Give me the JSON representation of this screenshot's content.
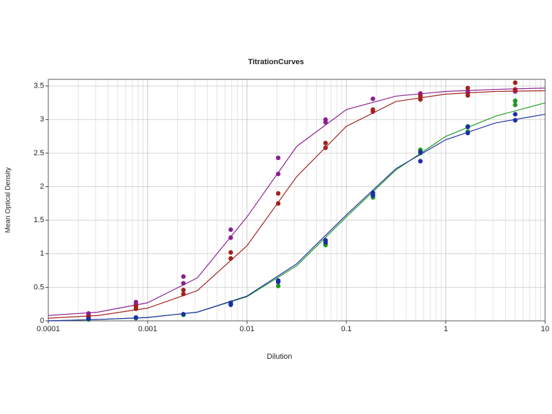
{
  "chart_data": {
    "type": "scatter",
    "title": "TitrationCurves",
    "x_label": "Dilution",
    "y_label": "Mean Optical Density",
    "xscale": "log",
    "grid": true,
    "xlim": [
      0.0001,
      10
    ],
    "xticks": [
      0.0001,
      0.001,
      0.01,
      0.1,
      1,
      10
    ],
    "xminorticks": [
      0.0002,
      0.0003,
      0.0004,
      0.0005,
      0.0006,
      0.0007,
      0.0008,
      0.0009,
      0.002,
      0.003,
      0.004,
      0.005,
      0.006,
      0.007,
      0.008,
      0.009,
      0.02,
      0.03,
      0.04,
      0.05,
      0.06,
      0.07,
      0.08,
      0.09,
      0.2,
      0.3,
      0.4,
      0.5,
      0.6,
      0.7,
      0.8,
      0.9,
      2,
      3,
      4,
      5,
      6,
      7,
      8,
      9
    ],
    "ylim": [
      0,
      3.6
    ],
    "yticks": [
      0,
      0.5,
      1,
      1.5,
      2,
      2.5,
      3,
      3.5
    ],
    "series": [
      {
        "color": "#8b1f8f",
        "x": [
          0.000254,
          0.000254,
          0.000762,
          0.000762,
          0.00229,
          0.00229,
          0.00686,
          0.00686,
          0.0206,
          0.0206,
          0.0617,
          0.0617,
          0.185,
          0.556,
          0.556,
          1.667,
          1.667,
          5,
          5
        ],
        "values": [
          0.11,
          0.08,
          0.28,
          0.24,
          0.66,
          0.56,
          1.36,
          1.24,
          2.43,
          2.19,
          3.0,
          2.96,
          3.31,
          3.39,
          3.36,
          3.42,
          3.4,
          3.44,
          3.42
        ],
        "fit": {
          "x": [
            0.0001,
            0.000316,
            0.001,
            0.00316,
            0.01,
            0.0316,
            0.1,
            0.316,
            1,
            3.16,
            10
          ],
          "values": [
            0.08,
            0.13,
            0.27,
            0.64,
            1.55,
            2.6,
            3.15,
            3.35,
            3.42,
            3.45,
            3.47
          ]
        }
      },
      {
        "color": "#a3201d",
        "x": [
          0.000254,
          0.000254,
          0.000762,
          0.000762,
          0.00229,
          0.00229,
          0.00686,
          0.00686,
          0.0206,
          0.0206,
          0.0617,
          0.0617,
          0.185,
          0.185,
          0.556,
          0.556,
          1.667,
          1.667,
          5,
          5
        ],
        "values": [
          0.06,
          0.04,
          0.22,
          0.18,
          0.46,
          0.4,
          1.02,
          0.93,
          1.9,
          1.75,
          2.65,
          2.58,
          3.15,
          3.12,
          3.35,
          3.3,
          3.47,
          3.36,
          3.55,
          3.45
        ],
        "fit": {
          "x": [
            0.0001,
            0.000316,
            0.001,
            0.00316,
            0.01,
            0.0316,
            0.1,
            0.316,
            1,
            3.16,
            10
          ],
          "values": [
            0.04,
            0.08,
            0.19,
            0.45,
            1.12,
            2.15,
            2.9,
            3.27,
            3.38,
            3.42,
            3.43
          ]
        }
      },
      {
        "color": "#1f9a1f",
        "x": [
          0.000254,
          0.000762,
          0.00229,
          0.00686,
          0.0206,
          0.0206,
          0.0617,
          0.0617,
          0.185,
          0.185,
          0.556,
          0.556,
          1.667,
          1.667,
          5,
          5
        ],
        "values": [
          0.02,
          0.04,
          0.09,
          0.25,
          0.6,
          0.52,
          1.15,
          1.13,
          1.88,
          1.84,
          2.55,
          2.5,
          2.9,
          2.82,
          3.28,
          3.22
        ],
        "fit": {
          "x": [
            0.0001,
            0.000316,
            0.001,
            0.00316,
            0.01,
            0.0316,
            0.1,
            0.316,
            1,
            3.16,
            10
          ],
          "values": [
            0.0,
            0.02,
            0.05,
            0.13,
            0.36,
            0.82,
            1.55,
            2.25,
            2.75,
            3.05,
            3.25
          ]
        }
      },
      {
        "color": "#1c2fa8",
        "x": [
          0.000254,
          0.000762,
          0.00229,
          0.00686,
          0.00686,
          0.0206,
          0.0206,
          0.0617,
          0.0617,
          0.185,
          0.185,
          0.556,
          0.556,
          1.667,
          1.667,
          5,
          5
        ],
        "values": [
          0.03,
          0.05,
          0.1,
          0.27,
          0.24,
          0.6,
          0.58,
          1.2,
          1.17,
          1.91,
          1.87,
          2.52,
          2.38,
          2.89,
          2.8,
          3.08,
          2.99
        ],
        "fit": {
          "x": [
            0.0001,
            0.000316,
            0.001,
            0.00316,
            0.01,
            0.0316,
            0.1,
            0.316,
            1,
            3.16,
            10
          ],
          "values": [
            0.0,
            0.02,
            0.05,
            0.13,
            0.37,
            0.85,
            1.58,
            2.27,
            2.7,
            2.95,
            3.08
          ]
        }
      }
    ]
  }
}
